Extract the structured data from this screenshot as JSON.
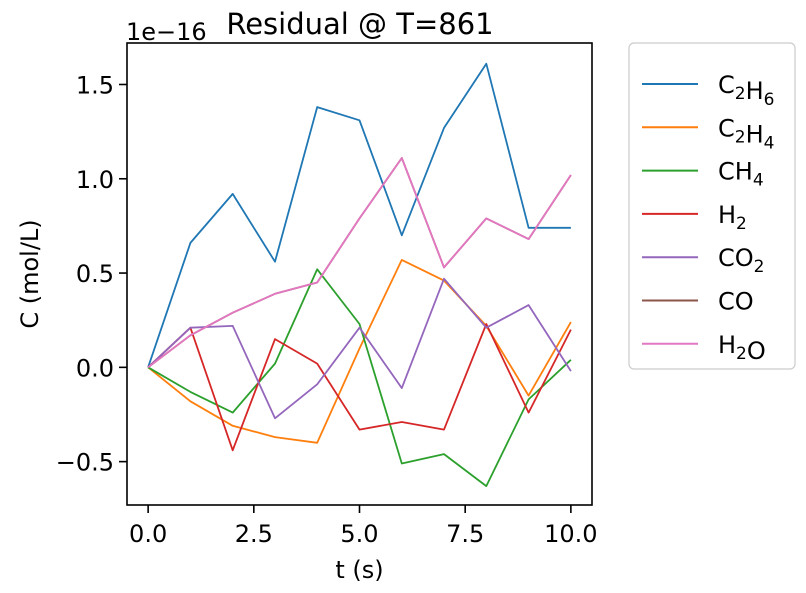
{
  "chart_data": {
    "type": "line",
    "title": "Residual @ T=861",
    "xlabel": "t (s)",
    "ylabel": "C (mol/L)",
    "offset_text": "1e−16",
    "x": [
      0,
      1,
      2,
      3,
      4,
      5,
      6,
      7,
      8,
      9,
      10
    ],
    "xlim": [
      -0.5,
      10.5
    ],
    "ylim": [
      -0.73,
      1.72
    ],
    "xticks": [
      0.0,
      2.5,
      5.0,
      7.5,
      10.0
    ],
    "xtick_labels": [
      "0.0",
      "2.5",
      "5.0",
      "7.5",
      "10.0"
    ],
    "yticks": [
      -0.5,
      0.0,
      0.5,
      1.0,
      1.5
    ],
    "ytick_labels": [
      "−0.5",
      "0.0",
      "0.5",
      "1.0",
      "1.5"
    ],
    "grid": false,
    "legend_placement": "outside-upper-right",
    "series": [
      {
        "name": "C2H6",
        "label_base": [
          "C",
          "H"
        ],
        "label_sub": [
          "2",
          "6"
        ],
        "color": "#1f77b4",
        "values": [
          0.0,
          0.66,
          0.92,
          0.56,
          1.38,
          1.31,
          0.7,
          1.27,
          1.61,
          0.74,
          0.74
        ]
      },
      {
        "name": "C2H4",
        "label_base": [
          "C",
          "H"
        ],
        "label_sub": [
          "2",
          "4"
        ],
        "color": "#ff7f0e",
        "values": [
          0.0,
          -0.18,
          -0.31,
          -0.37,
          -0.4,
          0.1,
          0.57,
          0.46,
          0.22,
          -0.15,
          0.24
        ]
      },
      {
        "name": "CH4",
        "label_base": [
          "CH"
        ],
        "label_sub": [
          "4"
        ],
        "color": "#2ca02c",
        "values": [
          0.0,
          -0.13,
          -0.24,
          0.02,
          0.52,
          0.23,
          -0.51,
          -0.46,
          -0.63,
          -0.17,
          0.04
        ]
      },
      {
        "name": "H2",
        "label_base": [
          "H"
        ],
        "label_sub": [
          "2"
        ],
        "color": "#d62728",
        "values": [
          0.0,
          0.21,
          -0.44,
          0.15,
          0.02,
          -0.33,
          -0.29,
          -0.33,
          0.23,
          -0.24,
          0.2
        ]
      },
      {
        "name": "CO2",
        "label_base": [
          "CO"
        ],
        "label_sub": [
          "2"
        ],
        "color": "#9467bd",
        "values": [
          0.0,
          0.21,
          0.22,
          -0.27,
          -0.09,
          0.21,
          -0.11,
          0.47,
          0.21,
          0.33,
          -0.02
        ]
      },
      {
        "name": "CO",
        "label_base": [
          "CO"
        ],
        "label_sub": [
          ""
        ],
        "color": "#8c564b",
        "values": [
          0.0,
          0.17,
          0.29,
          0.39,
          0.45,
          0.79,
          1.11,
          0.53,
          0.79,
          0.68,
          1.02
        ]
      },
      {
        "name": "H2O",
        "label_base": [
          "H",
          "O"
        ],
        "label_sub": [
          "2",
          ""
        ],
        "color": "#e377c2",
        "values": [
          0.0,
          0.17,
          0.29,
          0.39,
          0.45,
          0.79,
          1.11,
          0.53,
          0.79,
          0.68,
          1.02
        ]
      }
    ]
  }
}
